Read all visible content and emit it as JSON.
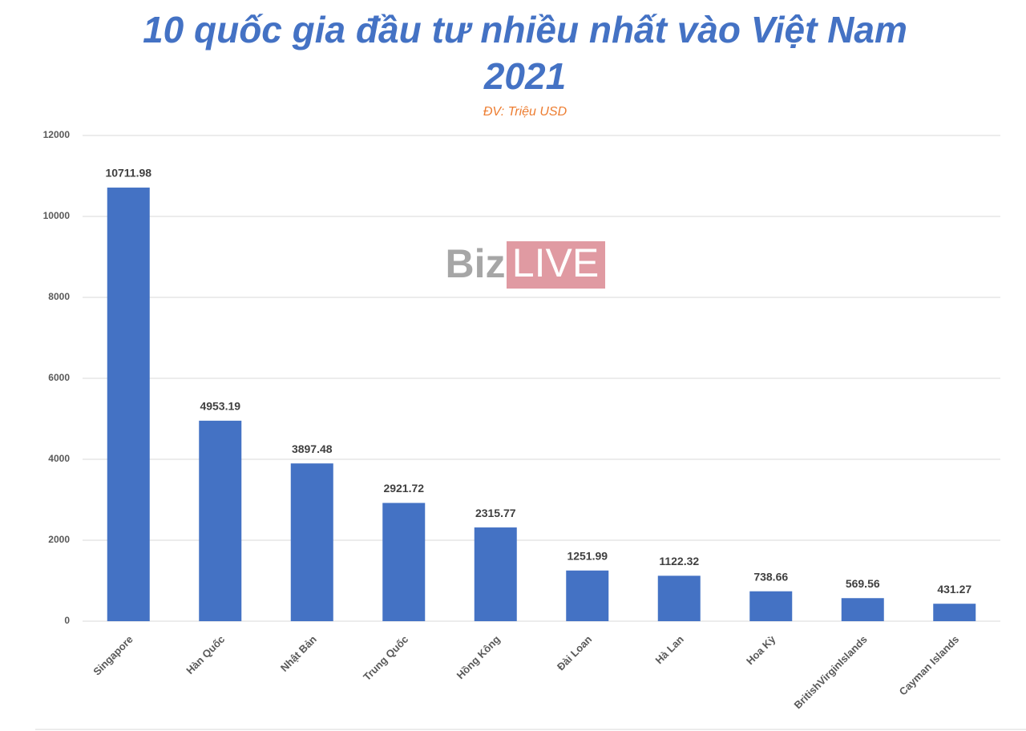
{
  "chart_data": {
    "type": "bar",
    "title": "10 quốc gia đầu tư nhiều nhất vào Việt Nam 2021",
    "subtitle": "ĐV: Triệu USD",
    "watermark": {
      "gray": "Biz",
      "boxed": "LIVE"
    },
    "categories": [
      "Singapore",
      "Hàn Quốc",
      "Nhật Bản",
      "Trung Quốc",
      "Hồng Kông",
      "Đài Loan",
      "Hà Lan",
      "Hoa Kỳ",
      "BritishVirginIslands",
      "Cayman Islands"
    ],
    "values": [
      10711.98,
      4953.19,
      3897.48,
      2921.72,
      2315.77,
      1251.99,
      1122.32,
      738.66,
      569.56,
      431.27
    ],
    "color": "#4472c4",
    "ylim": [
      0,
      12000
    ],
    "yticks": [
      0,
      2000,
      4000,
      6000,
      8000,
      10000,
      12000
    ],
    "grid": true
  }
}
